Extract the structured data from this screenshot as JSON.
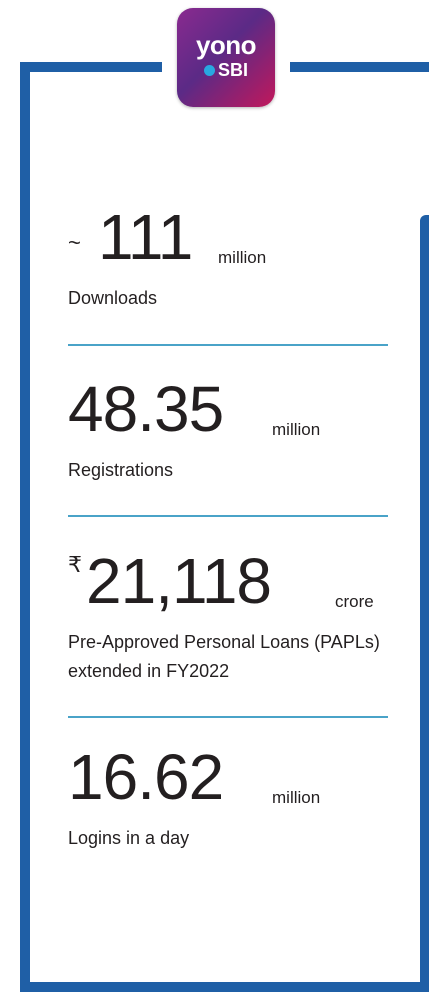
{
  "logo": {
    "line1": "yono",
    "line2": "SBI"
  },
  "stats": [
    {
      "prefix": "~",
      "number": "111",
      "unit": "million",
      "label": "Downloads"
    },
    {
      "number": "48.35",
      "unit": "million",
      "label": "Registrations"
    },
    {
      "prefix": "₹",
      "number": "21,118",
      "unit": "crore",
      "label": "Pre-Approved Personal Loans (PAPLs) extended in FY2022"
    },
    {
      "number": "16.62",
      "unit": "million",
      "label": "Logins in a day"
    }
  ]
}
